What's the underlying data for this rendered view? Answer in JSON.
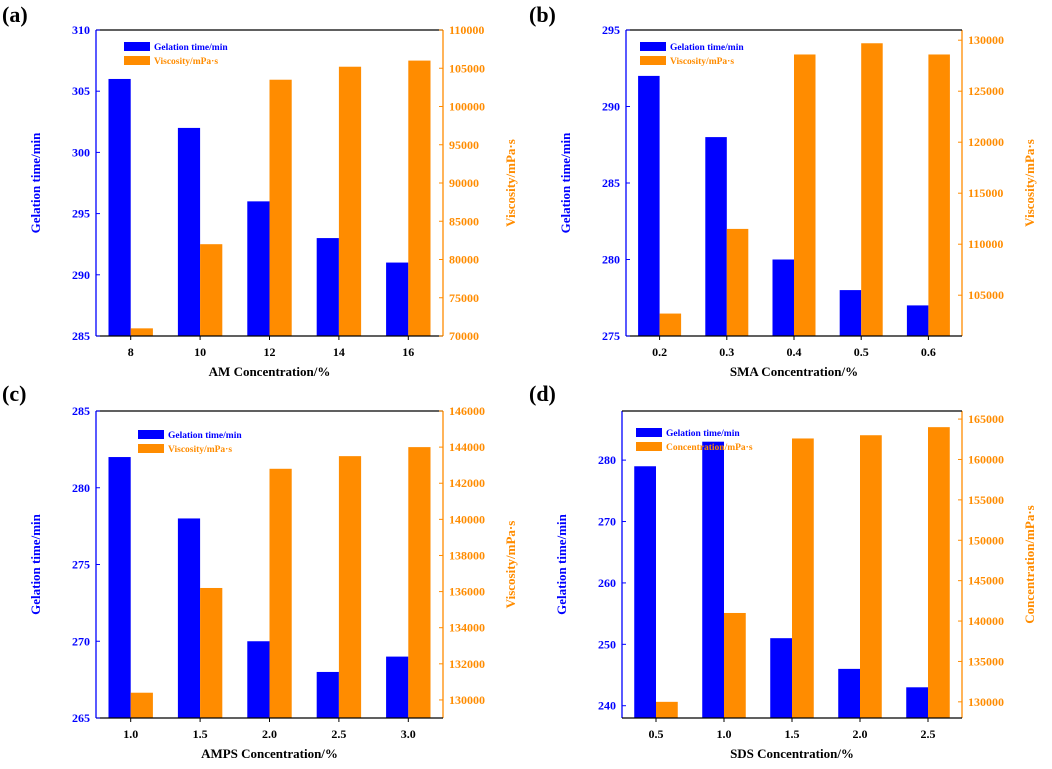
{
  "colors": {
    "gel": "#0000ff",
    "vis": "#ff8c00",
    "axis": "#000000"
  },
  "chart_data": [
    {
      "type": "bar",
      "panel": "(a)",
      "categories": [
        "8",
        "10",
        "12",
        "14",
        "16"
      ],
      "xlabel": "AM Concentration/%",
      "ylabel_left": "Gelation time/min",
      "ylabel_right": "Viscosity/mPa·s",
      "ylim_left": [
        285,
        310
      ],
      "yticks_left": [
        285,
        290,
        295,
        300,
        305,
        310
      ],
      "ylim_right": [
        70000,
        110000
      ],
      "yticks_right": [
        70000,
        75000,
        80000,
        85000,
        90000,
        95000,
        100000,
        105000,
        110000
      ],
      "legend": "top-left",
      "series": [
        {
          "name": "Gelation time/min",
          "axis": "left",
          "values": [
            306,
            302,
            296,
            293,
            291
          ]
        },
        {
          "name": "Viscosity/mPa·s",
          "axis": "right",
          "values": [
            71000,
            82000,
            103500,
            105200,
            106000
          ]
        }
      ]
    },
    {
      "type": "bar",
      "panel": "(b)",
      "categories": [
        "0.2",
        "0.3",
        "0.4",
        "0.5",
        "0.6"
      ],
      "xlabel": "SMA Concentration/%",
      "ylabel_left": "Gelation time/min",
      "ylabel_right": "Viscosity/mPa·s",
      "ylim_left": [
        275,
        295
      ],
      "yticks_left": [
        275,
        280,
        285,
        290,
        295
      ],
      "ylim_right": [
        101000,
        131000
      ],
      "yticks_right": [
        105000,
        110000,
        115000,
        120000,
        125000,
        130000
      ],
      "legend": "top-left",
      "series": [
        {
          "name": "Gelation time/min",
          "axis": "left",
          "values": [
            292,
            288,
            280,
            278,
            277
          ]
        },
        {
          "name": "Viscosity/mPa·s",
          "axis": "right",
          "values": [
            103200,
            111500,
            128600,
            129700,
            128600
          ]
        }
      ]
    },
    {
      "type": "bar",
      "panel": "(c)",
      "categories": [
        "1.0",
        "1.5",
        "2.0",
        "2.5",
        "3.0"
      ],
      "xlabel": "AMPS Concentration/%",
      "ylabel_left": "Gelation time/min",
      "ylabel_right": "Viscosity/mPa·s",
      "ylim_left": [
        265,
        285
      ],
      "yticks_left": [
        265,
        270,
        275,
        280,
        285
      ],
      "ylim_right": [
        129000,
        146000
      ],
      "yticks_right": [
        130000,
        132000,
        134000,
        136000,
        138000,
        140000,
        142000,
        144000,
        146000
      ],
      "legend": "top-left",
      "series": [
        {
          "name": "Gelation time/min",
          "axis": "left",
          "values": [
            282,
            278,
            270,
            268,
            269
          ]
        },
        {
          "name": "Viscosity/mPa·s",
          "axis": "right",
          "values": [
            130400,
            136200,
            142800,
            143500,
            144000
          ]
        }
      ]
    },
    {
      "type": "bar",
      "panel": "(d)",
      "categories": [
        "0.5",
        "1.0",
        "1.5",
        "2.0",
        "2.5"
      ],
      "xlabel": "SDS Concentration/%",
      "ylabel_left": "Gelation time/min",
      "ylabel_right": "Concentration/mPa·s",
      "ylim_left": [
        238,
        288
      ],
      "yticks_left": [
        240,
        250,
        260,
        270,
        280
      ],
      "ylim_right": [
        128000,
        166000
      ],
      "yticks_right": [
        130000,
        135000,
        140000,
        145000,
        150000,
        155000,
        160000,
        165000
      ],
      "legend": "top-left",
      "series": [
        {
          "name": "Gelation time/min",
          "axis": "left",
          "values": [
            279,
            283,
            251,
            246,
            243
          ]
        },
        {
          "name": "Concentration/mPa·s",
          "axis": "right",
          "values": [
            130000,
            141000,
            162600,
            163000,
            164000
          ]
        }
      ]
    }
  ]
}
